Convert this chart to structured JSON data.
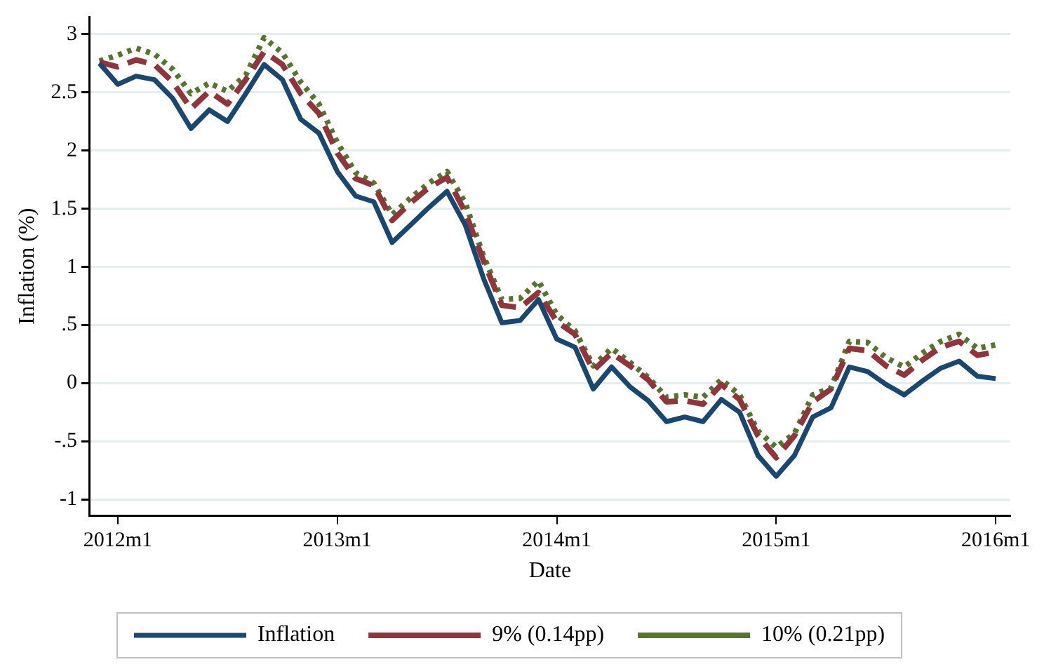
{
  "chart_data": {
    "type": "line",
    "xlabel": "Date",
    "ylabel": "Inflation (%)",
    "x": [
      "2011-12",
      "2012-01",
      "2012-02",
      "2012-03",
      "2012-04",
      "2012-05",
      "2012-06",
      "2012-07",
      "2012-08",
      "2012-09",
      "2012-10",
      "2012-11",
      "2012-12",
      "2013-01",
      "2013-02",
      "2013-03",
      "2013-04",
      "2013-05",
      "2013-06",
      "2013-07",
      "2013-08",
      "2013-09",
      "2013-10",
      "2013-11",
      "2013-12",
      "2014-01",
      "2014-02",
      "2014-03",
      "2014-04",
      "2014-05",
      "2014-06",
      "2014-07",
      "2014-08",
      "2014-09",
      "2014-10",
      "2014-11",
      "2014-12",
      "2015-01",
      "2015-02",
      "2015-03",
      "2015-04",
      "2015-05",
      "2015-06",
      "2015-07",
      "2015-08",
      "2015-09",
      "2015-10",
      "2015-11",
      "2015-12",
      "2016-01"
    ],
    "series": [
      {
        "name": "Inflation",
        "color": "#1a476f",
        "line_style": "solid",
        "values": [
          2.75,
          2.57,
          2.64,
          2.61,
          2.45,
          2.19,
          2.35,
          2.25,
          2.49,
          2.74,
          2.61,
          2.27,
          2.15,
          1.82,
          1.61,
          1.56,
          1.21,
          1.36,
          1.51,
          1.65,
          1.36,
          0.9,
          0.52,
          0.54,
          0.72,
          0.38,
          0.31,
          -0.05,
          0.14,
          -0.03,
          -0.15,
          -0.33,
          -0.29,
          -0.33,
          -0.14,
          -0.25,
          -0.62,
          -0.8,
          -0.62,
          -0.29,
          -0.21,
          0.14,
          0.1,
          -0.01,
          -0.1,
          0.02,
          0.13,
          0.19,
          0.06,
          0.04
        ]
      },
      {
        "name": "9% (0.14pp)",
        "color": "#90353b",
        "line_style": "dashed",
        "values": [
          2.76,
          2.72,
          2.78,
          2.74,
          2.59,
          2.36,
          2.51,
          2.4,
          2.61,
          2.85,
          2.74,
          2.49,
          2.32,
          1.98,
          1.76,
          1.7,
          1.4,
          1.55,
          1.68,
          1.77,
          1.47,
          1.05,
          0.67,
          0.65,
          0.78,
          0.53,
          0.42,
          0.11,
          0.26,
          0.15,
          0.03,
          -0.16,
          -0.15,
          -0.18,
          -0.01,
          -0.14,
          -0.45,
          -0.64,
          -0.45,
          -0.16,
          -0.05,
          0.3,
          0.28,
          0.15,
          0.07,
          0.2,
          0.31,
          0.36,
          0.24,
          0.27
        ]
      },
      {
        "name": "10% (0.21pp)",
        "color": "#55752f",
        "line_style": "dotted",
        "values": [
          2.77,
          2.82,
          2.88,
          2.83,
          2.7,
          2.49,
          2.58,
          2.51,
          2.65,
          2.97,
          2.84,
          2.59,
          2.4,
          2.07,
          1.81,
          1.72,
          1.45,
          1.59,
          1.72,
          1.82,
          1.55,
          1.09,
          0.72,
          0.73,
          0.88,
          0.59,
          0.45,
          0.15,
          0.3,
          0.18,
          0.05,
          -0.12,
          -0.1,
          -0.12,
          0.03,
          -0.1,
          -0.41,
          -0.55,
          -0.43,
          -0.1,
          -0.04,
          0.36,
          0.35,
          0.22,
          0.14,
          0.26,
          0.36,
          0.42,
          0.3,
          0.33
        ]
      }
    ],
    "xlim": [
      "2011-11-15",
      "2016-01-25"
    ],
    "xticks": [
      {
        "value": "2012-01",
        "label": "2012m1"
      },
      {
        "value": "2013-01",
        "label": "2013m1"
      },
      {
        "value": "2014-01",
        "label": "2014m1"
      },
      {
        "value": "2015-01",
        "label": "2015m1"
      },
      {
        "value": "2016-01",
        "label": "2016m1"
      }
    ],
    "ylim": [
      -1.14,
      3.15
    ],
    "yticks": [
      {
        "value": -1,
        "label": "-1"
      },
      {
        "value": -0.5,
        "label": "-.5"
      },
      0,
      {
        "value": 0.5,
        "label": ".5"
      },
      1,
      1.5,
      2,
      2.5,
      3
    ],
    "grid": "y",
    "legend": "bottom",
    "marker": "none"
  }
}
